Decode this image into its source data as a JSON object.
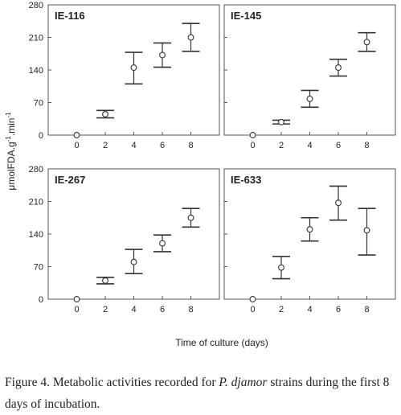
{
  "chart_data": [
    {
      "type": "scatter",
      "title": "IE-116",
      "x": [
        0,
        2,
        4,
        6,
        8
      ],
      "y": [
        0,
        45,
        145,
        172,
        210
      ],
      "y_low": [
        0,
        37,
        110,
        146,
        180
      ],
      "y_high": [
        0,
        53,
        178,
        198,
        240
      ],
      "xlim": [
        -2,
        10
      ],
      "ylim": [
        0,
        280
      ],
      "xticks": [
        "0",
        "2",
        "4",
        "6",
        "8"
      ],
      "yticks": [
        "0",
        "70",
        "140",
        "210",
        "280"
      ],
      "error_bars": true,
      "grid": false
    },
    {
      "type": "scatter",
      "title": "IE-145",
      "x": [
        0,
        2,
        4,
        6,
        8
      ],
      "y": [
        0,
        28,
        78,
        145,
        200
      ],
      "y_low": [
        0,
        24,
        60,
        127,
        180
      ],
      "y_high": [
        0,
        32,
        96,
        163,
        220
      ],
      "xlim": [
        -2,
        10
      ],
      "ylim": [
        0,
        280
      ],
      "xticks": [
        "0",
        "2",
        "4",
        "6",
        "8"
      ],
      "yticks": [
        "0",
        "70",
        "140",
        "210",
        "280"
      ],
      "error_bars": true,
      "grid": false
    },
    {
      "type": "scatter",
      "title": "IE-267",
      "x": [
        0,
        2,
        4,
        6,
        8
      ],
      "y": [
        0,
        40,
        80,
        120,
        175
      ],
      "y_low": [
        0,
        33,
        55,
        102,
        155
      ],
      "y_high": [
        0,
        47,
        107,
        138,
        195
      ],
      "xlim": [
        -2,
        10
      ],
      "ylim": [
        0,
        280
      ],
      "xticks": [
        "0",
        "2",
        "4",
        "6",
        "8"
      ],
      "yticks": [
        "0",
        "70",
        "140",
        "210",
        "280"
      ],
      "error_bars": true,
      "grid": false
    },
    {
      "type": "scatter",
      "title": "IE-633",
      "x": [
        0,
        2,
        4,
        6,
        8
      ],
      "y": [
        0,
        68,
        150,
        207,
        148
      ],
      "y_low": [
        0,
        44,
        125,
        170,
        95
      ],
      "y_high": [
        0,
        92,
        175,
        243,
        195
      ],
      "xlim": [
        -2,
        10
      ],
      "ylim": [
        0,
        280
      ],
      "xticks": [
        "0",
        "2",
        "4",
        "6",
        "8"
      ],
      "yticks": [
        "0",
        "70",
        "140",
        "210",
        "280"
      ],
      "error_bars": true,
      "grid": false
    }
  ],
  "axes": {
    "ylabel_main": "μmolFDA.g",
    "ylabel_sup1": "-1",
    "ylabel_mid": ".min",
    "ylabel_sup2": "-1",
    "xlabel": "Time of culture (days)"
  },
  "caption": {
    "prefix": "Figure 4. Metabolic activities recorded for ",
    "species": "P. djamor",
    "suffix": " strains during the first 8 days of incubation."
  }
}
